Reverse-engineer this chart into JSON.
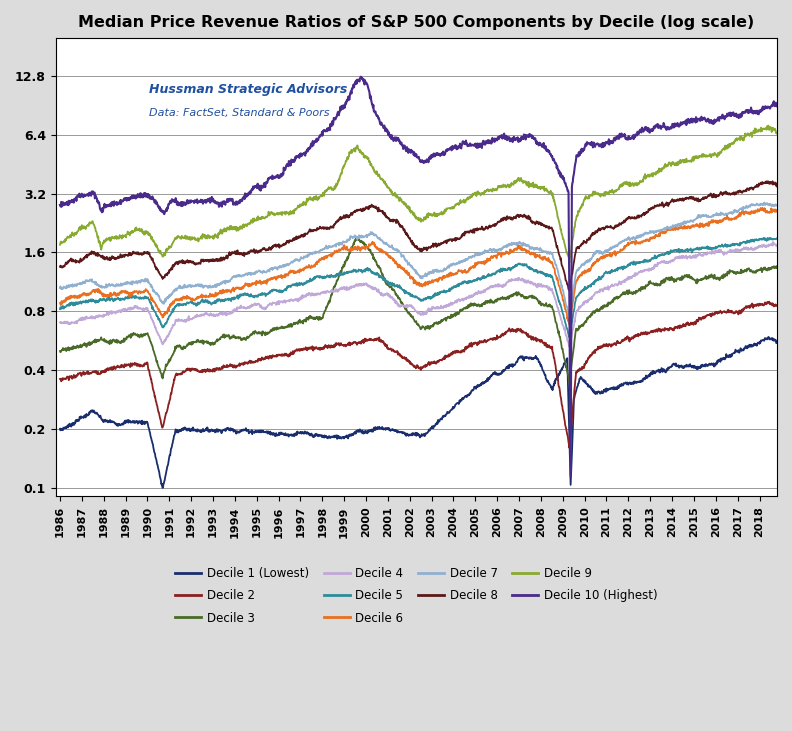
{
  "title": "Median Price Revenue Ratios of S&P 500 Components by Decile (log scale)",
  "annotation_line1": "Hussman Strategic Advisors",
  "annotation_line2": "Data: FactSet, Standard & Poors",
  "year_start": 1986,
  "year_end": 2018,
  "yticks": [
    0.1,
    0.2,
    0.4,
    0.8,
    1.6,
    3.2,
    6.4,
    12.8
  ],
  "ylim": [
    0.09,
    20.0
  ],
  "background_color": "#dcdcdc",
  "plot_bg_color": "#ffffff",
  "decile_colors": [
    "#1a2e6e",
    "#8b2020",
    "#4a6b28",
    "#c0a8d8",
    "#2e8b9a",
    "#e87020",
    "#90b0d0",
    "#5a1818",
    "#88aa30",
    "#4a2a8a"
  ],
  "decile_labels": [
    "Decile 1 (Lowest)",
    "Decile 2",
    "Decile 3",
    "Decile 4",
    "Decile 5",
    "Decile 6",
    "Decile 7",
    "Decile 8",
    "Decile 9",
    "Decile 10 (Highest)"
  ],
  "decile_lw": [
    1.3,
    1.3,
    1.3,
    1.3,
    1.3,
    1.3,
    1.3,
    1.3,
    1.3,
    1.5
  ]
}
